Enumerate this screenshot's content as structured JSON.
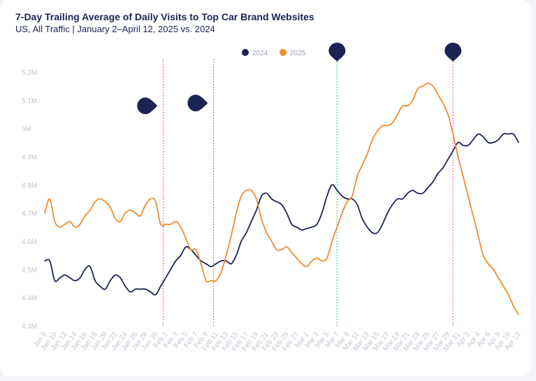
{
  "header": {
    "title": "7-Day Trailing Average of Daily Visits to Top Car Brand Websites",
    "subtitle": "US, All Traffic | January 2–April 12, 2025 vs. 2024"
  },
  "colors": {
    "series_2024": "#1b2355",
    "series_2025": "#f28a2e",
    "event_line_pink": "#f06aa8",
    "event_line_green": "#4fcf9c",
    "marker": "#1b2355",
    "tick_text": "#c2c5d2"
  },
  "chart_data": {
    "type": "line",
    "title": "7-Day Trailing Average of Daily Visits to Top Car Brand Websites",
    "xlabel": "",
    "ylabel": "",
    "ylim": [
      4.3,
      5.25
    ],
    "y_ticks": [
      4.3,
      4.4,
      4.5,
      4.6,
      4.7,
      4.8,
      4.9,
      5.0,
      5.1,
      5.2
    ],
    "y_tick_labels": [
      "4.3M",
      "4.4M",
      "4.5M",
      "4.6M",
      "4.7M",
      "4.8M",
      "4.9M",
      "5M",
      "5.1M",
      "5.2M"
    ],
    "x_range_days": [
      8,
      102
    ],
    "x_ticks": [
      8,
      10,
      12,
      14,
      16,
      18,
      20,
      22,
      24,
      26,
      28,
      30,
      32,
      34,
      36,
      38,
      40,
      42,
      44,
      46,
      48,
      50,
      52,
      54,
      56,
      58,
      60,
      62,
      64,
      66,
      68,
      70,
      72,
      74,
      76,
      78,
      80,
      82,
      84,
      86,
      88,
      90,
      92,
      94,
      96,
      98,
      100,
      102
    ],
    "x_tick_labels": [
      "Jan 8",
      "Jan 10",
      "Jan 12",
      "Jan 14",
      "Jan 16",
      "Jan 18",
      "Jan 20",
      "Jan 22",
      "Jan 24",
      "Jan 26",
      "Jan 28",
      "Jan 30",
      "Feb 1",
      "Feb 3",
      "Feb 5",
      "Feb 7",
      "Feb 9",
      "Feb 11",
      "Feb 13",
      "Feb 15",
      "Feb 17",
      "Feb 19",
      "Feb 21",
      "Feb 23",
      "Feb 25",
      "Feb 27",
      "Mar 1",
      "Mar 3",
      "Mar 5",
      "Mar 7",
      "Mar 9",
      "Mar 11",
      "Mar 13",
      "Mar 15",
      "Mar 17",
      "Mar 19",
      "Mar 21",
      "Mar 23",
      "Mar 25",
      "Mar 27",
      "Mar 29",
      "Mar 31",
      "Apr 2",
      "Apr 4",
      "Apr 6",
      "Apr 8",
      "Apr 10",
      "Apr 12"
    ],
    "legend_position": "top-center",
    "series": [
      {
        "name": "2024",
        "color": "#1b2355",
        "x": [
          8,
          9,
          10,
          11,
          12,
          13,
          14,
          15,
          16,
          17,
          18,
          19,
          20,
          21,
          22,
          23,
          24,
          25,
          26,
          27,
          28,
          29,
          30,
          31,
          32,
          33,
          34,
          35,
          36,
          37,
          38,
          39,
          40,
          41,
          42,
          43,
          44,
          45,
          46,
          47,
          48,
          49,
          50,
          51,
          52,
          53,
          54,
          55,
          56,
          57,
          58,
          59,
          60,
          61,
          62,
          63,
          64,
          65,
          66,
          67,
          68,
          69,
          70,
          71,
          72,
          73,
          74,
          75,
          76,
          77,
          78,
          79,
          80,
          81,
          82,
          83,
          84,
          85,
          86,
          87,
          88,
          89,
          90,
          91,
          92,
          93,
          94,
          95,
          96,
          97,
          98,
          99,
          100,
          101,
          102
        ],
        "values": [
          4.53,
          4.53,
          4.46,
          4.47,
          4.48,
          4.47,
          4.46,
          4.47,
          4.5,
          4.51,
          4.46,
          4.44,
          4.43,
          4.46,
          4.48,
          4.47,
          4.44,
          4.42,
          4.43,
          4.43,
          4.43,
          4.42,
          4.41,
          4.44,
          4.47,
          4.5,
          4.53,
          4.55,
          4.58,
          4.57,
          4.55,
          4.53,
          4.52,
          4.51,
          4.52,
          4.53,
          4.53,
          4.52,
          4.55,
          4.6,
          4.63,
          4.67,
          4.71,
          4.76,
          4.77,
          4.75,
          4.74,
          4.73,
          4.7,
          4.66,
          4.65,
          4.64,
          4.645,
          4.65,
          4.66,
          4.7,
          4.76,
          4.8,
          4.78,
          4.76,
          4.75,
          4.75,
          4.73,
          4.68,
          4.65,
          4.63,
          4.63,
          4.66,
          4.7,
          4.73,
          4.75,
          4.75,
          4.77,
          4.78,
          4.77,
          4.77,
          4.79,
          4.81,
          4.84,
          4.86,
          4.89,
          4.92,
          4.95,
          4.94,
          4.94,
          4.96,
          4.98,
          4.97,
          4.95,
          4.95,
          4.96,
          4.98,
          4.98,
          4.98,
          4.95
        ]
      },
      {
        "name": "2025",
        "color": "#f28a2e",
        "x": [
          8,
          9,
          10,
          11,
          12,
          13,
          14,
          15,
          16,
          17,
          18,
          19,
          20,
          21,
          22,
          23,
          24,
          25,
          26,
          27,
          28,
          29,
          30,
          31,
          32,
          33,
          34,
          35,
          36,
          37,
          38,
          39,
          40,
          41,
          42,
          43,
          44,
          45,
          46,
          47,
          48,
          49,
          50,
          51,
          52,
          53,
          54,
          55,
          56,
          57,
          58,
          59,
          60,
          61,
          62,
          63,
          64,
          65,
          66,
          67,
          68,
          69,
          70,
          71,
          72,
          73,
          74,
          75,
          76,
          77,
          78,
          79,
          80,
          81,
          82,
          83,
          84,
          85,
          86,
          87,
          88,
          89,
          90,
          91,
          92,
          93,
          94,
          95,
          96,
          97,
          98,
          99,
          100,
          101,
          102
        ],
        "values": [
          4.7,
          4.75,
          4.67,
          4.65,
          4.66,
          4.67,
          4.65,
          4.66,
          4.69,
          4.71,
          4.74,
          4.75,
          4.74,
          4.72,
          4.68,
          4.67,
          4.7,
          4.71,
          4.7,
          4.69,
          4.73,
          4.75,
          4.74,
          4.66,
          4.66,
          4.66,
          4.67,
          4.65,
          4.61,
          4.57,
          4.57,
          4.52,
          4.46,
          4.46,
          4.46,
          4.49,
          4.55,
          4.62,
          4.7,
          4.76,
          4.78,
          4.78,
          4.75,
          4.68,
          4.63,
          4.6,
          4.57,
          4.57,
          4.58,
          4.56,
          4.54,
          4.52,
          4.51,
          4.53,
          4.54,
          4.53,
          4.54,
          4.6,
          4.65,
          4.7,
          4.74,
          4.76,
          4.83,
          4.87,
          4.91,
          4.96,
          4.99,
          5.01,
          5.01,
          5.02,
          5.05,
          5.08,
          5.08,
          5.1,
          5.14,
          5.15,
          5.16,
          5.15,
          5.12,
          5.09,
          5.05,
          4.98,
          4.9,
          4.83,
          4.76,
          4.69,
          4.62,
          4.55,
          4.52,
          4.5,
          4.47,
          4.44,
          4.41,
          4.37,
          4.34
        ]
      }
    ],
    "event_lines": [
      {
        "x": 31.5,
        "color": "#f06aa8"
      },
      {
        "x": 41.5,
        "color": "#f06aa8"
      },
      {
        "x": 66,
        "color": "#4fcf9c"
      },
      {
        "x": 89,
        "color": "#f06aa8"
      }
    ],
    "markers": [
      {
        "x": 66,
        "y": 5.25
      },
      {
        "x": 89,
        "y": 5.25
      },
      {
        "x": 28,
        "y": 5.08
      },
      {
        "x": 38,
        "y": 5.09
      }
    ]
  }
}
